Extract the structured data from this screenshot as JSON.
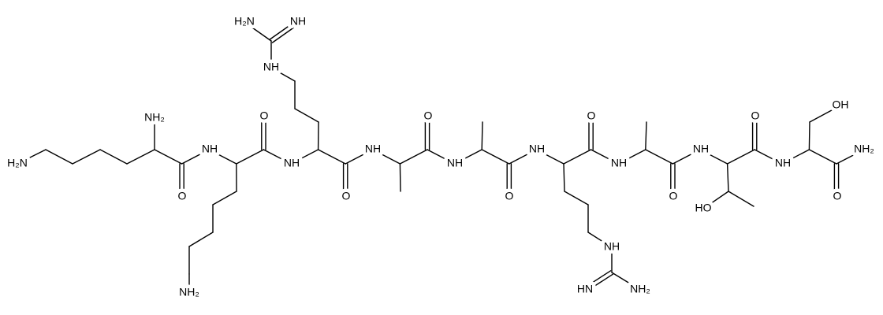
{
  "labels": [
    "H₂N",
    "NH₂",
    "O",
    "NH",
    "NH₂",
    "O",
    "NH",
    "NH",
    "H₂N",
    "NH",
    "O",
    "NH",
    "O",
    "NH",
    "O",
    "NH",
    "NH",
    "HN",
    "NH₂",
    "O",
    "NH",
    "O",
    "NH",
    "HO",
    "O",
    "NH",
    "OH",
    "O",
    "NH₂"
  ]
}
